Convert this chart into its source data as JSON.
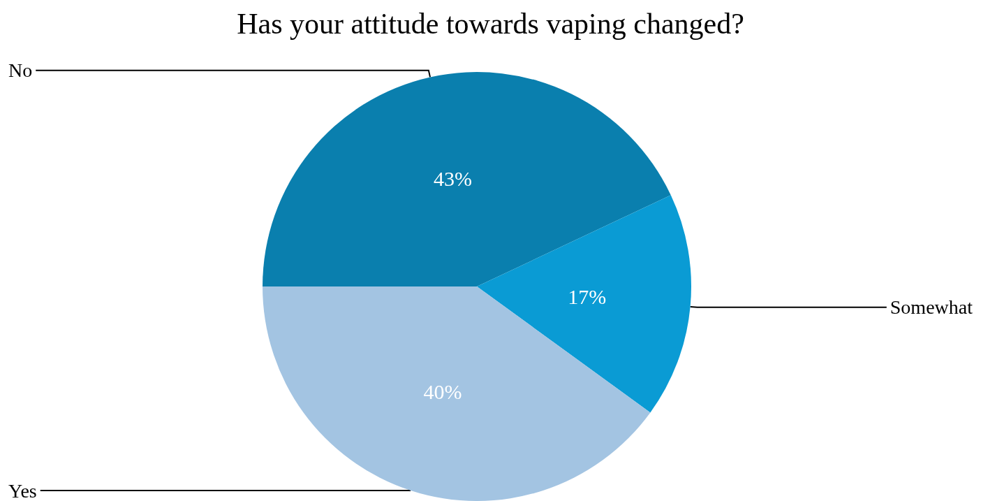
{
  "chart_data": {
    "type": "pie",
    "title": "Has your attitude towards vaping changed?",
    "categories": [
      "No",
      "Somewhat",
      "Yes"
    ],
    "values": [
      43,
      17,
      40
    ],
    "colors": [
      "#0a7fae",
      "#0a9bd4",
      "#a3c4e2"
    ],
    "value_labels": [
      "43%",
      "17%",
      "40%"
    ],
    "legend": false
  }
}
